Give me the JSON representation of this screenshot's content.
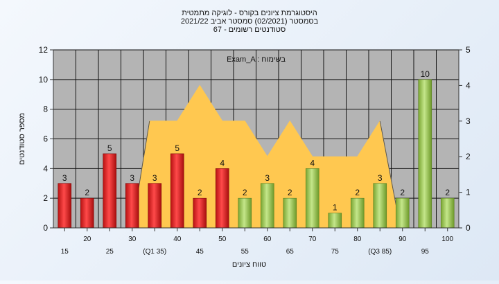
{
  "chart_data": {
    "type": "bar",
    "title_lines": [
      "היסטוגרמת ציונים בקורס - לוגיקה מתמטית",
      "בסמסטר  (02/2021)  סמסטר אביב 2021/22",
      "סטודנטים רשומים - 67"
    ],
    "xlabel": "טווח ציונים",
    "ylabel": "מספר סטודנטים",
    "annotation": "Exam_A : בשימוח",
    "y_left": {
      "min": 0,
      "max": 12,
      "ticks": [
        "0",
        "2",
        "4",
        "6",
        "8",
        "10",
        "12"
      ]
    },
    "y_right": {
      "min": 0,
      "max": 5,
      "ticks": [
        "0",
        "1",
        "2",
        "3",
        "4",
        "5"
      ]
    },
    "categories": [
      "15",
      "20",
      "25",
      "30",
      "(Q1 35)",
      "40",
      "45",
      "50",
      "55",
      "60",
      "65",
      "70",
      "75",
      "80",
      "(Q3 85)",
      "90",
      "95",
      "100"
    ],
    "values": [
      3,
      2,
      5,
      3,
      3,
      5,
      2,
      4,
      2,
      3,
      2,
      4,
      1,
      2,
      3,
      2,
      10,
      2
    ],
    "bar_colors": [
      "red",
      "red",
      "red",
      "red",
      "red",
      "red",
      "red",
      "red",
      "green",
      "green",
      "green",
      "green",
      "green",
      "green",
      "green",
      "green",
      "green",
      "green"
    ],
    "area_series": {
      "axis": "right",
      "values": [
        null,
        null,
        null,
        null,
        3,
        3,
        4,
        3,
        3,
        2,
        3,
        2,
        2,
        2,
        3,
        null,
        null,
        null
      ]
    },
    "grid": true,
    "colors": {
      "plot_bg": "#b4b4b4",
      "area": "#ffc850",
      "red_bar": "#e02020",
      "green_bar": "#9ac84a"
    }
  }
}
